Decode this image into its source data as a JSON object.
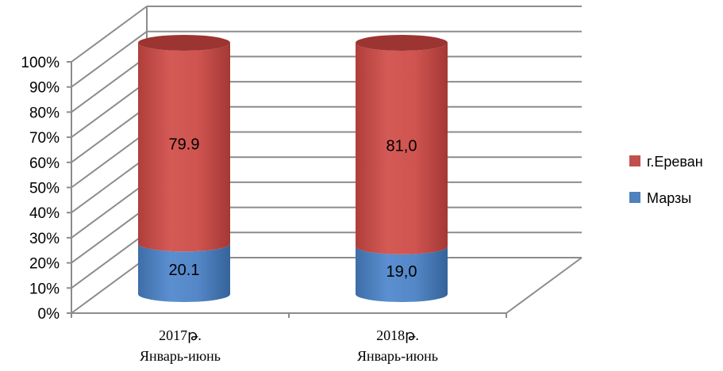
{
  "chart_data": {
    "type": "bar",
    "stacked": true,
    "percent": true,
    "categories": [
      [
        "2017թ.",
        "Январь-июнь"
      ],
      [
        "2018թ.",
        "Январь-июнь"
      ]
    ],
    "series": [
      {
        "name": "Марзы",
        "values": [
          20.1,
          19.0
        ],
        "labels": [
          "20.1",
          "19,0"
        ],
        "color": "#4f81bd"
      },
      {
        "name": "г.Ереван",
        "values": [
          79.9,
          81.0
        ],
        "labels": [
          "79.9",
          "81,0"
        ],
        "color": "#c0504d"
      }
    ],
    "yticks": [
      "0%",
      "10%",
      "20%",
      "30%",
      "40%",
      "50%",
      "60%",
      "70%",
      "80%",
      "90%",
      "100%"
    ],
    "ylim": [
      0,
      100
    ],
    "grid": true,
    "legend": "right"
  }
}
